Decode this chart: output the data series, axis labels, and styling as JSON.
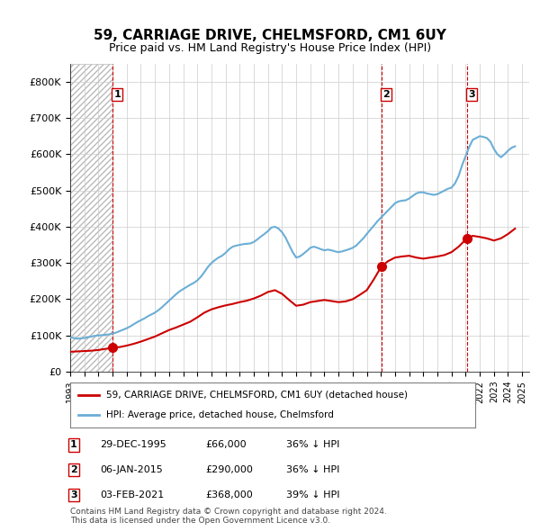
{
  "title": "59, CARRIAGE DRIVE, CHELMSFORD, CM1 6UY",
  "subtitle": "Price paid vs. HM Land Registry's House Price Index (HPI)",
  "ylabel": "",
  "xlim_left": 1993.0,
  "xlim_right": 2025.5,
  "ylim_bottom": 0,
  "ylim_top": 850000,
  "yticks": [
    0,
    100000,
    200000,
    300000,
    400000,
    500000,
    600000,
    700000,
    800000
  ],
  "ytick_labels": [
    "£0",
    "£100K",
    "£200K",
    "£300K",
    "£400K",
    "£500K",
    "£600K",
    "£700K",
    "£800K"
  ],
  "xticks": [
    1993,
    1994,
    1995,
    1996,
    1997,
    1998,
    1999,
    2000,
    2001,
    2002,
    2003,
    2004,
    2005,
    2006,
    2007,
    2008,
    2009,
    2010,
    2011,
    2012,
    2013,
    2014,
    2015,
    2016,
    2017,
    2018,
    2019,
    2020,
    2021,
    2022,
    2023,
    2024,
    2025
  ],
  "hpi_color": "#6baed6",
  "price_color": "#cc0000",
  "dashed_line_color": "#cc0000",
  "marker_color": "#cc0000",
  "hatch_color": "#cccccc",
  "grid_color": "#cccccc",
  "background_color": "#ffffff",
  "legend_label_price": "59, CARRIAGE DRIVE, CHELMSFORD, CM1 6UY (detached house)",
  "legend_label_hpi": "HPI: Average price, detached house, Chelmsford",
  "transactions": [
    {
      "num": 1,
      "date": "29-DEC-1995",
      "year": 1995.99,
      "price": 66000,
      "label": "1"
    },
    {
      "num": 2,
      "date": "06-JAN-2015",
      "year": 2015.03,
      "price": 290000,
      "label": "2"
    },
    {
      "num": 3,
      "date": "03-FEB-2021",
      "year": 2021.09,
      "price": 368000,
      "label": "3"
    }
  ],
  "table_rows": [
    {
      "num": "1",
      "date": "29-DEC-1995",
      "price": "£66,000",
      "hpi": "36% ↓ HPI"
    },
    {
      "num": "2",
      "date": "06-JAN-2015",
      "price": "£290,000",
      "hpi": "36% ↓ HPI"
    },
    {
      "num": "3",
      "date": "03-FEB-2021",
      "price": "£368,000",
      "hpi": "39% ↓ HPI"
    }
  ],
  "footer": "Contains HM Land Registry data © Crown copyright and database right 2024.\nThis data is licensed under the Open Government Licence v3.0.",
  "hpi_data_x": [
    1993.0,
    1993.25,
    1993.5,
    1993.75,
    1994.0,
    1994.25,
    1994.5,
    1994.75,
    1995.0,
    1995.25,
    1995.5,
    1995.75,
    1996.0,
    1996.25,
    1996.5,
    1996.75,
    1997.0,
    1997.25,
    1997.5,
    1997.75,
    1998.0,
    1998.25,
    1998.5,
    1998.75,
    1999.0,
    1999.25,
    1999.5,
    1999.75,
    2000.0,
    2000.25,
    2000.5,
    2000.75,
    2001.0,
    2001.25,
    2001.5,
    2001.75,
    2002.0,
    2002.25,
    2002.5,
    2002.75,
    2003.0,
    2003.25,
    2003.5,
    2003.75,
    2004.0,
    2004.25,
    2004.5,
    2004.75,
    2005.0,
    2005.25,
    2005.5,
    2005.75,
    2006.0,
    2006.25,
    2006.5,
    2006.75,
    2007.0,
    2007.25,
    2007.5,
    2007.75,
    2008.0,
    2008.25,
    2008.5,
    2008.75,
    2009.0,
    2009.25,
    2009.5,
    2009.75,
    2010.0,
    2010.25,
    2010.5,
    2010.75,
    2011.0,
    2011.25,
    2011.5,
    2011.75,
    2012.0,
    2012.25,
    2012.5,
    2012.75,
    2013.0,
    2013.25,
    2013.5,
    2013.75,
    2014.0,
    2014.25,
    2014.5,
    2014.75,
    2015.0,
    2015.25,
    2015.5,
    2015.75,
    2016.0,
    2016.25,
    2016.5,
    2016.75,
    2017.0,
    2017.25,
    2017.5,
    2017.75,
    2018.0,
    2018.25,
    2018.5,
    2018.75,
    2019.0,
    2019.25,
    2019.5,
    2019.75,
    2020.0,
    2020.25,
    2020.5,
    2020.75,
    2021.0,
    2021.25,
    2021.5,
    2021.75,
    2022.0,
    2022.25,
    2022.5,
    2022.75,
    2023.0,
    2023.25,
    2023.5,
    2023.75,
    2024.0,
    2024.25,
    2024.5
  ],
  "hpi_data_y": [
    95000,
    93000,
    91000,
    92000,
    93000,
    95000,
    97000,
    99000,
    100000,
    101000,
    102000,
    103000,
    105000,
    108000,
    112000,
    116000,
    120000,
    125000,
    131000,
    137000,
    142000,
    147000,
    153000,
    158000,
    163000,
    170000,
    178000,
    187000,
    196000,
    205000,
    214000,
    222000,
    228000,
    234000,
    240000,
    245000,
    252000,
    262000,
    275000,
    289000,
    300000,
    308000,
    315000,
    320000,
    328000,
    338000,
    345000,
    348000,
    350000,
    352000,
    353000,
    354000,
    358000,
    365000,
    373000,
    380000,
    388000,
    398000,
    400000,
    395000,
    385000,
    370000,
    350000,
    330000,
    315000,
    318000,
    325000,
    333000,
    342000,
    345000,
    342000,
    338000,
    335000,
    337000,
    335000,
    332000,
    330000,
    332000,
    335000,
    338000,
    342000,
    348000,
    358000,
    368000,
    380000,
    392000,
    403000,
    415000,
    425000,
    435000,
    445000,
    455000,
    465000,
    470000,
    472000,
    473000,
    478000,
    485000,
    492000,
    495000,
    495000,
    492000,
    490000,
    488000,
    490000,
    495000,
    500000,
    505000,
    508000,
    520000,
    540000,
    570000,
    595000,
    620000,
    640000,
    645000,
    650000,
    648000,
    645000,
    635000,
    615000,
    600000,
    592000,
    600000,
    610000,
    618000,
    622000
  ],
  "price_data_x": [
    1993.0,
    1993.5,
    1994.0,
    1994.5,
    1995.0,
    1995.5,
    1995.99,
    1996.0,
    1996.5,
    1997.0,
    1997.5,
    1998.0,
    1998.5,
    1999.0,
    1999.5,
    2000.0,
    2000.5,
    2001.0,
    2001.5,
    2002.0,
    2002.5,
    2003.0,
    2003.5,
    2004.0,
    2004.5,
    2005.0,
    2005.5,
    2006.0,
    2006.5,
    2007.0,
    2007.5,
    2008.0,
    2008.5,
    2009.0,
    2009.5,
    2010.0,
    2010.5,
    2011.0,
    2011.5,
    2012.0,
    2012.5,
    2013.0,
    2013.5,
    2014.0,
    2014.5,
    2015.03,
    2015.5,
    2016.0,
    2016.5,
    2017.0,
    2017.5,
    2018.0,
    2018.5,
    2019.0,
    2019.5,
    2020.0,
    2020.5,
    2021.09,
    2021.5,
    2022.0,
    2022.5,
    2023.0,
    2023.5,
    2024.0,
    2024.5
  ],
  "price_data_y": [
    55000,
    56000,
    57000,
    58000,
    60000,
    63000,
    66000,
    66000,
    68000,
    72000,
    77000,
    83000,
    90000,
    97000,
    106000,
    115000,
    122000,
    130000,
    138000,
    150000,
    163000,
    172000,
    178000,
    183000,
    187000,
    192000,
    196000,
    202000,
    210000,
    220000,
    225000,
    215000,
    198000,
    182000,
    185000,
    192000,
    195000,
    198000,
    195000,
    192000,
    194000,
    200000,
    212000,
    225000,
    255000,
    290000,
    305000,
    315000,
    318000,
    320000,
    315000,
    312000,
    315000,
    318000,
    322000,
    330000,
    345000,
    368000,
    375000,
    372000,
    368000,
    362000,
    368000,
    380000,
    395000
  ]
}
